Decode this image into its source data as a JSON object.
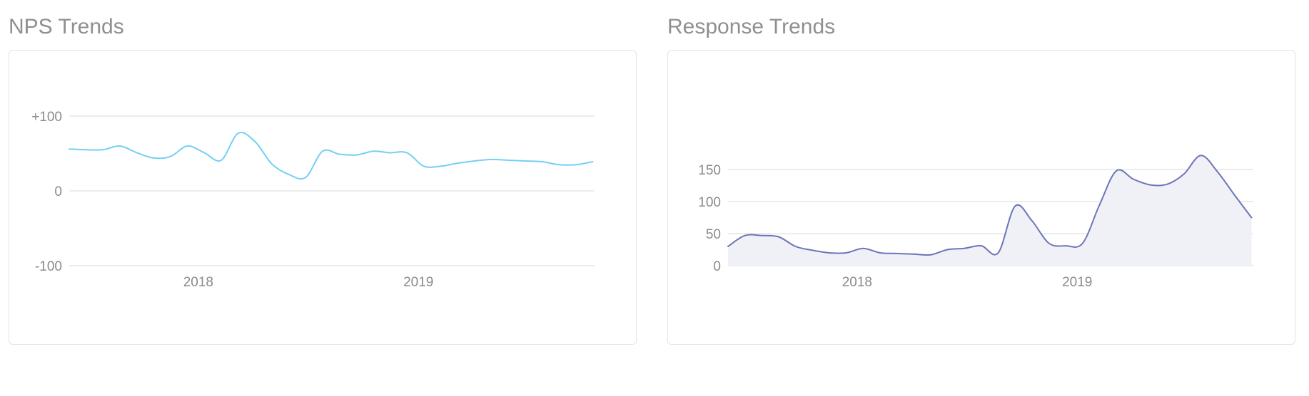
{
  "panels": {
    "nps": {
      "title": "NPS Trends"
    },
    "responses": {
      "title": "Response Trends"
    }
  },
  "chart_data": [
    {
      "type": "line",
      "title": "NPS Trends",
      "xlabel": "",
      "ylabel": "",
      "xlim": [
        "2017-06-01",
        "2019-10-20"
      ],
      "ylim": [
        -100,
        100
      ],
      "y_ticks": [
        {
          "value": 100,
          "label": "+100"
        },
        {
          "value": 0,
          "label": "0"
        },
        {
          "value": -100,
          "label": "-100"
        }
      ],
      "x_ticks": [
        {
          "value": "2018-01-01",
          "label": "2018"
        },
        {
          "value": "2019-01-01",
          "label": "2019"
        }
      ],
      "grid": true,
      "color": "#74cff4",
      "series": [
        {
          "x": [
            "2017-06-01",
            "2017-06-29",
            "2017-07-27",
            "2017-08-24",
            "2017-09-21",
            "2017-10-19",
            "2017-11-16",
            "2017-12-14",
            "2018-01-11",
            "2018-02-08",
            "2018-03-08",
            "2018-04-05",
            "2018-05-03",
            "2018-05-31",
            "2018-06-28",
            "2018-07-26",
            "2018-08-23",
            "2018-09-20",
            "2018-10-18",
            "2018-11-15",
            "2018-12-13",
            "2019-01-10",
            "2019-02-07",
            "2019-03-07",
            "2019-04-04",
            "2019-05-02",
            "2019-05-30",
            "2019-06-27",
            "2019-07-25",
            "2019-08-22",
            "2019-09-19",
            "2019-10-17"
          ],
          "values": [
            56,
            55,
            55,
            60,
            51,
            44,
            46,
            60,
            51,
            41,
            77,
            66,
            36,
            22,
            18,
            53,
            49,
            48,
            53,
            51,
            51,
            33,
            33,
            37,
            40,
            42,
            41,
            40,
            39,
            35,
            35,
            39
          ]
        }
      ]
    },
    {
      "type": "area",
      "title": "Response Trends",
      "xlabel": "",
      "ylabel": "",
      "xlim": [
        "2017-06-01",
        "2019-10-20"
      ],
      "ylim": [
        0,
        200
      ],
      "y_ticks": [
        {
          "value": 150,
          "label": "150"
        },
        {
          "value": 100,
          "label": "100"
        },
        {
          "value": 50,
          "label": "50"
        },
        {
          "value": 0,
          "label": "0"
        }
      ],
      "x_ticks": [
        {
          "value": "2018-01-01",
          "label": "2018"
        },
        {
          "value": "2019-01-01",
          "label": "2019"
        }
      ],
      "grid": true,
      "color": "#6b75b8",
      "fill": "#f0f1f7",
      "series": [
        {
          "x": [
            "2017-06-01",
            "2017-06-29",
            "2017-07-27",
            "2017-08-24",
            "2017-09-21",
            "2017-10-19",
            "2017-11-16",
            "2017-12-14",
            "2018-01-11",
            "2018-02-08",
            "2018-03-08",
            "2018-04-05",
            "2018-05-03",
            "2018-05-31",
            "2018-06-28",
            "2018-07-26",
            "2018-08-23",
            "2018-09-20",
            "2018-10-18",
            "2018-11-15",
            "2018-12-13",
            "2019-01-10",
            "2019-02-07",
            "2019-03-07",
            "2019-04-04",
            "2019-05-02",
            "2019-05-30",
            "2019-06-27",
            "2019-07-25",
            "2019-08-22",
            "2019-09-19",
            "2019-10-17"
          ],
          "values": [
            30,
            47,
            47,
            45,
            30,
            24,
            20,
            20,
            27,
            20,
            19,
            18,
            17,
            25,
            27,
            31,
            20,
            93,
            70,
            35,
            31,
            35,
            95,
            148,
            135,
            126,
            127,
            143,
            172,
            146,
            110,
            75
          ]
        }
      ]
    }
  ]
}
